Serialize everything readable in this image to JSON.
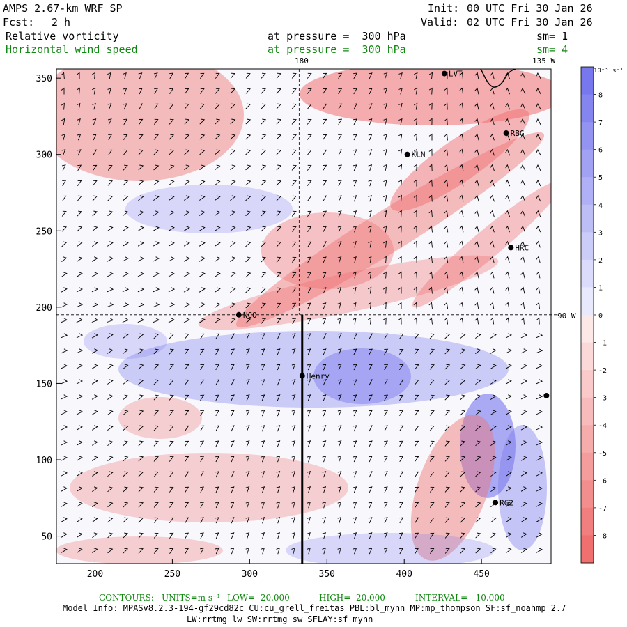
{
  "header": {
    "model_title": "AMPS 2.67-km WRF SP",
    "init_label": "Init:",
    "init_value": "00 UTC Fri 30 Jan 26",
    "fcst_label": "Fcst:",
    "fcst_value": "2 h",
    "valid_label": "Valid:",
    "valid_value": "02 UTC Fri 30 Jan 26",
    "field1_name": "Relative vorticity",
    "field1_level": "at pressure =  300 hPa",
    "field1_sm": "sm= 1",
    "field2_name": "Horizontal wind speed",
    "field2_level": "at pressure =  300 hPa",
    "field2_sm": "sm= 4"
  },
  "map": {
    "x_ticks": [
      200,
      250,
      300,
      350,
      400,
      450
    ],
    "y_ticks": [
      50,
      100,
      150,
      200,
      250,
      300,
      350
    ],
    "x_range": [
      175,
      495
    ],
    "y_range": [
      32,
      356
    ],
    "meridian_180_label": "180",
    "meridian_135w_label": "135 W",
    "meridian_90w_label": "90 W",
    "section_line": {
      "x": 334,
      "y_from": 32,
      "y_to": 195
    },
    "grid_lines": {
      "vertical_x": 332,
      "horizontal_y": 195
    },
    "stations": [
      {
        "name": "LVT",
        "x": 426,
        "y": 353
      },
      {
        "name": "RBG",
        "x": 466,
        "y": 314
      },
      {
        "name": "KLN",
        "x": 402,
        "y": 300
      },
      {
        "name": "HRC",
        "x": 469,
        "y": 239
      },
      {
        "name": "NCO",
        "x": 293,
        "y": 195
      },
      {
        "name": "Henry",
        "x": 334,
        "y": 155
      },
      {
        "name": "RG2",
        "x": 459,
        "y": 72
      },
      {
        "name": "",
        "x": 492,
        "y": 142
      }
    ]
  },
  "colorbar": {
    "unit_label": "10⁻⁵ s⁻¹",
    "levels": [
      8,
      7,
      6,
      5,
      4,
      3,
      2,
      1,
      0,
      -1,
      -2,
      -3,
      -4,
      -5,
      -6,
      -7,
      -8
    ],
    "positive_color": "#7777ee",
    "negative_color": "#f07070"
  },
  "footer": {
    "contours_label": "CONTOURS:",
    "units_label": "UNITS=m s⁻¹",
    "low_label": "LOW=  20.000",
    "high_label": "HIGH=  20.000",
    "interval_label": "INTERVAL=   10.000",
    "model_info_line1": "Model Info: MPASv8.2.3-194-gf29cd82c CU:cu_grell_freitas PBL:bl_mynn MP:mp_thompson SF:sf_noahmp 2.7",
    "model_info_line2": "LW:rrtmg_lw SW:rrtmg_sw SFLAY:sf_mynn"
  }
}
